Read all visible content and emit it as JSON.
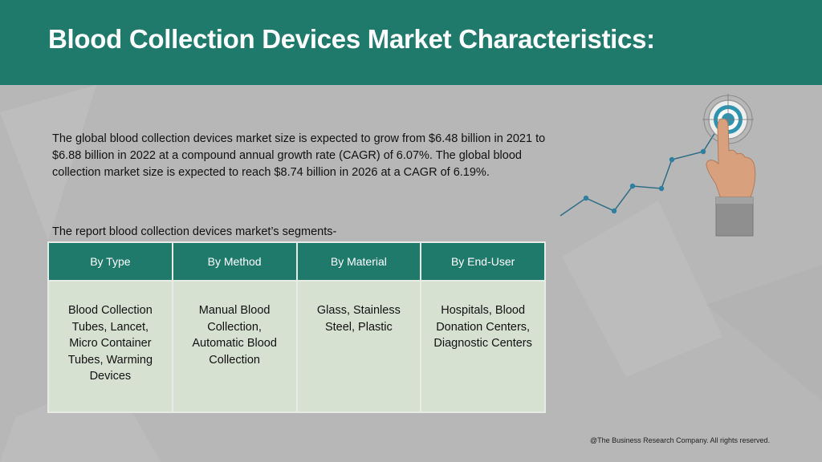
{
  "header": {
    "title": "Blood Collection Devices Market Characteristics:"
  },
  "intro": "The global blood collection devices market size is expected to grow from $6.48 billion in 2021 to $6.88 billion in 2022 at a compound annual growth rate (CAGR) of 6.07%. The global blood collection market size is expected to reach $8.74 billion in 2026 at a CAGR of 6.19%.",
  "segments_label": "The report blood collection devices market’s segments-",
  "table": {
    "headers": [
      "By Type",
      "By Method",
      "By Material",
      "By End-User"
    ],
    "cells": [
      "Blood Collection Tubes, Lancet, Micro Container Tubes, Warming Devices",
      "Manual Blood Collection, Automatic Blood Collection",
      "Glass, Stainless Steel, Plastic",
      "Hospitals, Blood Donation Centers, Diagnostic Centers"
    ]
  },
  "footer": "@The Business Research Company. All rights reserved.",
  "colors": {
    "accent": "#1f7a6c",
    "background": "#b7b7b7",
    "cell_fill": "#d6e1d1",
    "chart_line": "#2f6d86"
  },
  "decoration": {
    "graphic": "hand-touching-target-icon with rising-trend-line"
  }
}
